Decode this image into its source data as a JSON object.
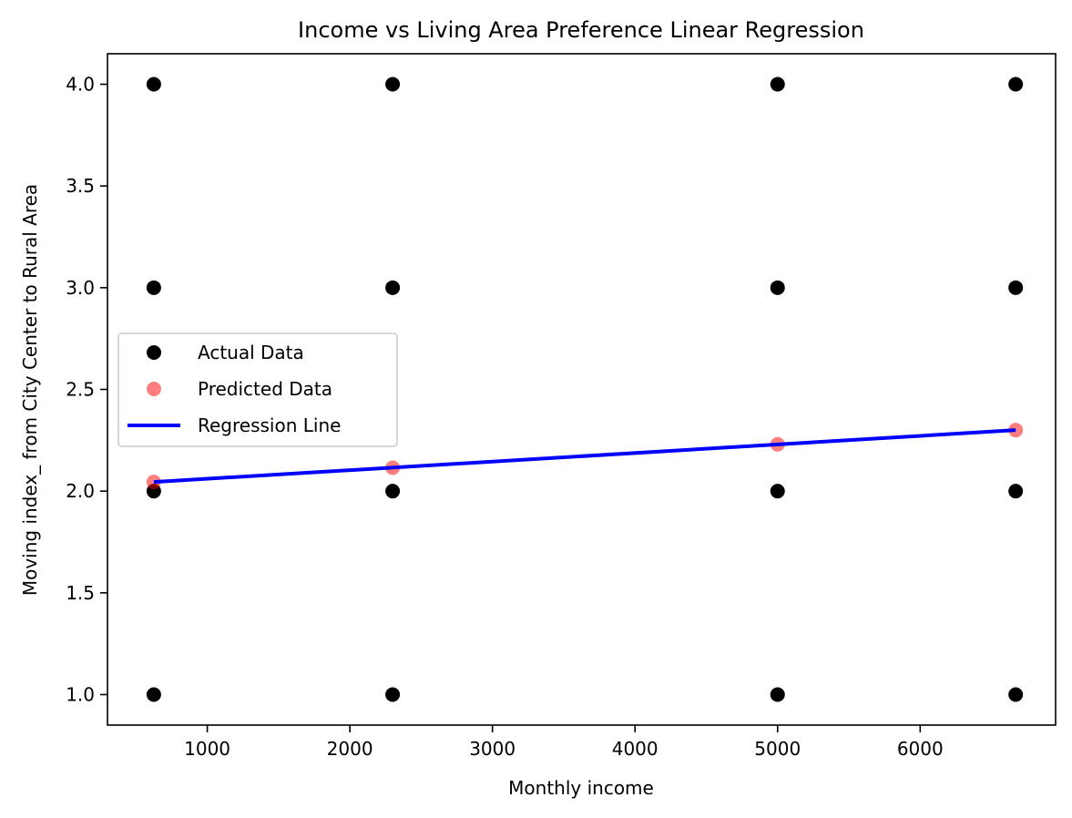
{
  "chart_data": {
    "type": "scatter",
    "title": "Income vs Living Area Preference Linear Regression",
    "xlabel": "Monthly income",
    "ylabel": "Moving index_ from City Center to Rural Area",
    "xlim": [
      300,
      6950
    ],
    "ylim": [
      0.85,
      4.15
    ],
    "xticks": [
      1000,
      2000,
      3000,
      4000,
      5000,
      6000
    ],
    "yticks": [
      1.0,
      1.5,
      2.0,
      2.5,
      3.0,
      3.5,
      4.0
    ],
    "xtick_labels": [
      "1000",
      "2000",
      "3000",
      "4000",
      "5000",
      "6000"
    ],
    "ytick_labels": [
      "1.0",
      "1.5",
      "2.0",
      "2.5",
      "3.0",
      "3.5",
      "4.0"
    ],
    "grid": false,
    "legend_position": "center-left",
    "series": [
      {
        "name": "Actual Data",
        "kind": "scatter",
        "color": "#000000",
        "alpha": 1.0,
        "x": [
          625,
          625,
          625,
          625,
          2300,
          2300,
          2300,
          2300,
          5000,
          5000,
          5000,
          5000,
          6670,
          6670,
          6670,
          6670
        ],
        "y": [
          1,
          2,
          3,
          4,
          1,
          2,
          3,
          4,
          1,
          2,
          3,
          4,
          1,
          2,
          3,
          4
        ]
      },
      {
        "name": "Predicted Data",
        "kind": "scatter",
        "color": "#ff0000",
        "alpha": 0.5,
        "x": [
          625,
          2300,
          5000,
          6670
        ],
        "y": [
          2.045,
          2.115,
          2.23,
          2.3
        ]
      },
      {
        "name": "Regression Line",
        "kind": "line",
        "color": "#0000ff",
        "x": [
          625,
          6670
        ],
        "y": [
          2.045,
          2.3
        ]
      }
    ]
  }
}
